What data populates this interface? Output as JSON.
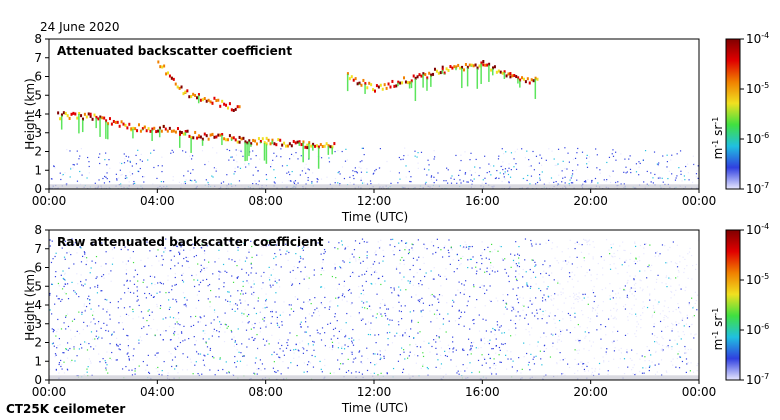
{
  "date_label": "24 June 2020",
  "instrument_label": "CT25K ceilometer",
  "chart_data": [
    {
      "type": "heatmap",
      "title": "Attenuated backscatter coefficient",
      "xlabel": "Time (UTC)",
      "ylabel": "Height (km)",
      "x_ticks": [
        "00:00",
        "04:00",
        "08:00",
        "12:00",
        "16:00",
        "20:00",
        "00:00"
      ],
      "y_ticks": [
        0,
        1,
        2,
        3,
        4,
        5,
        6,
        7,
        8
      ],
      "ylim": [
        0,
        8
      ],
      "colorbar": {
        "scale": "log",
        "ticks": [
          "10-7",
          "10-6",
          "10-5",
          "10-4"
        ],
        "tick_base": "10",
        "tick_exponents": [
          "-7",
          "-6",
          "-5",
          "-4"
        ],
        "unit_label": "m-1 sr-1",
        "colors": [
          "#e8e8ff",
          "#3040e0",
          "#20c0e0",
          "#40e040",
          "#f0e020",
          "#f08000",
          "#e00000",
          "#800000"
        ]
      },
      "features": [
        {
          "name": "boundary-layer-top",
          "points": [
            [
              0.3,
              3.9
            ],
            [
              1.5,
              3.8
            ],
            [
              3.0,
              3.3
            ],
            [
              3.5,
              3.2
            ],
            [
              4.2,
              3.2
            ],
            [
              4.8,
              3.0
            ],
            [
              5.5,
              2.8
            ],
            [
              6.0,
              2.8
            ],
            [
              7.0,
              2.6
            ],
            [
              8.0,
              2.5
            ],
            [
              9.5,
              2.3
            ],
            [
              10.5,
              2.4
            ]
          ]
        },
        {
          "name": "mid-level-cloud",
          "points": [
            [
              4.0,
              6.8
            ],
            [
              4.5,
              5.8
            ],
            [
              5.0,
              5.1
            ],
            [
              6.0,
              4.7
            ],
            [
              7.0,
              4.2
            ]
          ]
        },
        {
          "name": "upper-cloud",
          "points": [
            [
              11.0,
              6.0
            ],
            [
              12.0,
              5.3
            ],
            [
              14.5,
              6.3
            ],
            [
              16.0,
              6.6
            ],
            [
              17.0,
              6.0
            ],
            [
              18.0,
              5.7
            ]
          ]
        }
      ]
    },
    {
      "type": "heatmap",
      "title": "Raw attenuated backscatter coefficient",
      "xlabel": "Time (UTC)",
      "ylabel": "Height (km)",
      "x_ticks": [
        "00:00",
        "04:00",
        "08:00",
        "12:00",
        "16:00",
        "20:00",
        "00:00"
      ],
      "y_ticks": [
        0,
        1,
        2,
        3,
        4,
        5,
        6,
        7,
        8
      ],
      "ylim": [
        0,
        8
      ],
      "colorbar": {
        "scale": "log",
        "ticks": [
          "10-7",
          "10-6",
          "10-5",
          "10-4"
        ],
        "tick_base": "10",
        "tick_exponents": [
          "-7",
          "-6",
          "-5",
          "-4"
        ],
        "unit_label": "m-1 sr-1",
        "colors": [
          "#e8e8ff",
          "#3040e0",
          "#20c0e0",
          "#40e040",
          "#f0e020",
          "#f08000",
          "#e00000",
          "#800000"
        ]
      }
    }
  ]
}
